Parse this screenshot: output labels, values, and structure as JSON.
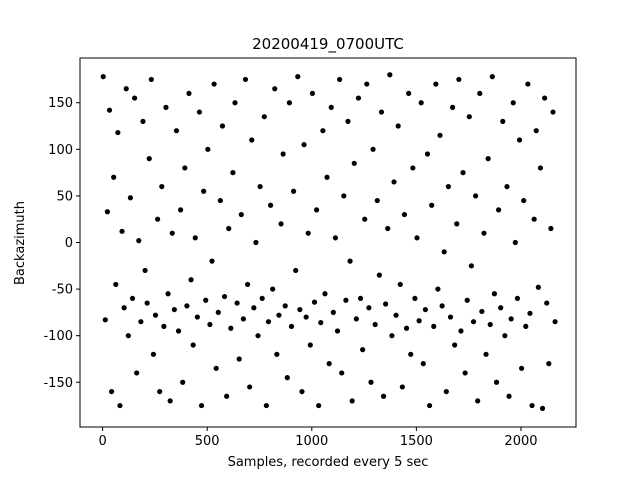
{
  "chart_data": {
    "type": "scatter",
    "title": "20200419_0700UTC",
    "x_label": "Samples, recorded every 5 sec",
    "y_label": "Backazimuth",
    "color": "#000000",
    "xlim": [
      -108,
      2263
    ],
    "ylim": [
      -198,
      198
    ],
    "xticks": [
      0,
      500,
      1000,
      1500,
      2000
    ],
    "yticks": [
      -150,
      -100,
      -50,
      0,
      50,
      100,
      150
    ],
    "x": [
      3,
      13,
      23,
      33,
      43,
      53,
      63,
      73,
      83,
      93,
      103,
      113,
      123,
      133,
      143,
      153,
      163,
      173,
      183,
      193,
      203,
      213,
      223,
      233,
      243,
      253,
      263,
      273,
      283,
      293,
      303,
      313,
      323,
      333,
      343,
      353,
      363,
      373,
      383,
      393,
      403,
      413,
      423,
      433,
      443,
      453,
      463,
      473,
      483,
      493,
      503,
      513,
      523,
      533,
      543,
      553,
      563,
      573,
      583,
      593,
      603,
      613,
      623,
      633,
      643,
      653,
      663,
      673,
      683,
      693,
      703,
      713,
      723,
      733,
      743,
      753,
      763,
      773,
      783,
      793,
      803,
      813,
      823,
      833,
      843,
      853,
      863,
      873,
      883,
      893,
      903,
      913,
      923,
      933,
      943,
      953,
      963,
      973,
      983,
      993,
      1003,
      1013,
      1023,
      1033,
      1043,
      1053,
      1063,
      1073,
      1083,
      1093,
      1103,
      1113,
      1123,
      1133,
      1143,
      1153,
      1163,
      1173,
      1183,
      1193,
      1203,
      1213,
      1223,
      1233,
      1243,
      1253,
      1263,
      1273,
      1283,
      1293,
      1303,
      1313,
      1323,
      1333,
      1343,
      1353,
      1363,
      1373,
      1383,
      1393,
      1403,
      1413,
      1423,
      1433,
      1443,
      1453,
      1463,
      1473,
      1483,
      1493,
      1503,
      1513,
      1523,
      1533,
      1543,
      1553,
      1563,
      1573,
      1583,
      1593,
      1603,
      1613,
      1623,
      1633,
      1643,
      1653,
      1663,
      1673,
      1683,
      1693,
      1703,
      1713,
      1723,
      1733,
      1743,
      1753,
      1763,
      1773,
      1783,
      1793,
      1803,
      1813,
      1823,
      1833,
      1843,
      1853,
      1863,
      1873,
      1883,
      1893,
      1903,
      1913,
      1923,
      1933,
      1943,
      1953,
      1963,
      1973,
      1983,
      1993,
      2003,
      2013,
      2023,
      2033,
      2043,
      2053,
      2063,
      2073,
      2083,
      2093,
      2103,
      2113,
      2123,
      2133,
      2143,
      2153,
      2163
    ],
    "values": [
      178,
      -83,
      33,
      142,
      -160,
      70,
      -45,
      118,
      -175,
      12,
      -70,
      165,
      -100,
      48,
      -60,
      155,
      -140,
      2,
      -85,
      130,
      -30,
      -65,
      90,
      175,
      -120,
      -78,
      25,
      -160,
      60,
      -90,
      145,
      -55,
      -170,
      10,
      -72,
      120,
      -95,
      35,
      -150,
      80,
      -68,
      160,
      -40,
      -110,
      5,
      -80,
      140,
      -175,
      55,
      -62,
      100,
      -88,
      -20,
      170,
      -135,
      -75,
      45,
      125,
      -58,
      -165,
      15,
      -92,
      75,
      150,
      -65,
      -125,
      30,
      -82,
      175,
      -45,
      -155,
      110,
      -70,
      0,
      -100,
      60,
      -60,
      135,
      -175,
      -85,
      40,
      -50,
      165,
      -120,
      -78,
      20,
      95,
      -68,
      -145,
      150,
      -90,
      55,
      -30,
      178,
      -72,
      -160,
      105,
      -80,
      10,
      -110,
      160,
      -64,
      35,
      -175,
      -86,
      120,
      -55,
      70,
      -130,
      145,
      -75,
      5,
      -95,
      175,
      -140,
      50,
      -62,
      130,
      -20,
      -170,
      85,
      -82,
      155,
      -60,
      -115,
      25,
      170,
      -70,
      -150,
      100,
      -88,
      45,
      -35,
      140,
      -165,
      -66,
      15,
      180,
      -100,
      65,
      -78,
      125,
      -45,
      -155,
      30,
      -92,
      160,
      -120,
      80,
      -60,
      5,
      -84,
      150,
      -130,
      -72,
      95,
      -175,
      40,
      -90,
      170,
      -50,
      115,
      -68,
      -10,
      -160,
      60,
      -80,
      145,
      -110,
      20,
      175,
      -95,
      75,
      -140,
      -62,
      135,
      -25,
      -85,
      50,
      -170,
      160,
      -74,
      10,
      -120,
      90,
      -88,
      178,
      -55,
      -150,
      35,
      -70,
      130,
      -100,
      60,
      -165,
      -82,
      150,
      0,
      -60,
      110,
      -135,
      45,
      -90,
      170,
      -76,
      -175,
      25,
      120,
      -48,
      80,
      -178,
      155,
      -65,
      -130,
      15,
      140,
      -85
    ]
  }
}
